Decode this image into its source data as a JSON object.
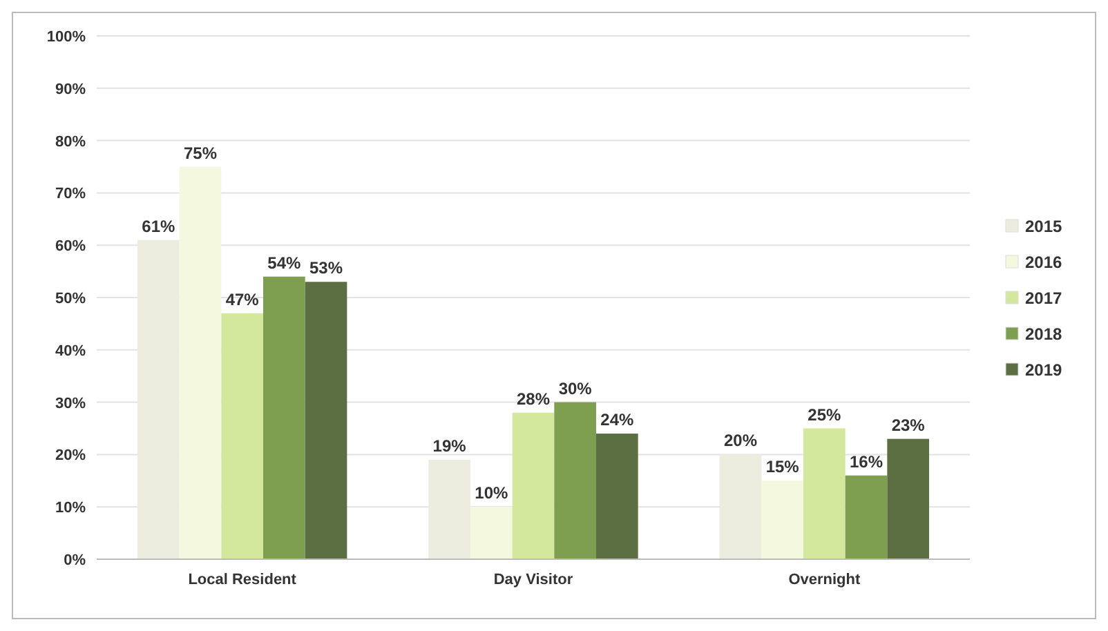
{
  "chart_data": {
    "type": "bar",
    "categories": [
      "Local Resident",
      "Day Visitor",
      "Overnight"
    ],
    "series": [
      {
        "name": "2015",
        "color": "#ededdf",
        "values": [
          61,
          19,
          20
        ],
        "value_labels": [
          "61%",
          "19%",
          "20%"
        ]
      },
      {
        "name": "2016",
        "color": "#f4f8de",
        "values": [
          75,
          10,
          15
        ],
        "value_labels": [
          "75%",
          "10%",
          "15%"
        ]
      },
      {
        "name": "2017",
        "color": "#d3e89c",
        "values": [
          47,
          28,
          25
        ],
        "value_labels": [
          "47%",
          "28%",
          "25%"
        ]
      },
      {
        "name": "2018",
        "color": "#7f9f50",
        "values": [
          54,
          30,
          16
        ],
        "value_labels": [
          "54%",
          "30%",
          "16%"
        ]
      },
      {
        "name": "2019",
        "color": "#5b6f42",
        "values": [
          53,
          24,
          23
        ],
        "value_labels": [
          "53%",
          "24%",
          "23%"
        ]
      }
    ],
    "ylim": [
      0,
      100
    ],
    "yticks": [
      {
        "value": 0,
        "label": "0%"
      },
      {
        "value": 10,
        "label": "10%"
      },
      {
        "value": 20,
        "label": "20%"
      },
      {
        "value": 30,
        "label": "30%"
      },
      {
        "value": 40,
        "label": "40%"
      },
      {
        "value": 50,
        "label": "50%"
      },
      {
        "value": 60,
        "label": "60%"
      },
      {
        "value": 70,
        "label": "70%"
      },
      {
        "value": 80,
        "label": "80%"
      },
      {
        "value": 90,
        "label": "90%"
      },
      {
        "value": 100,
        "label": "100%"
      }
    ],
    "grid": "y",
    "legend": "right"
  }
}
